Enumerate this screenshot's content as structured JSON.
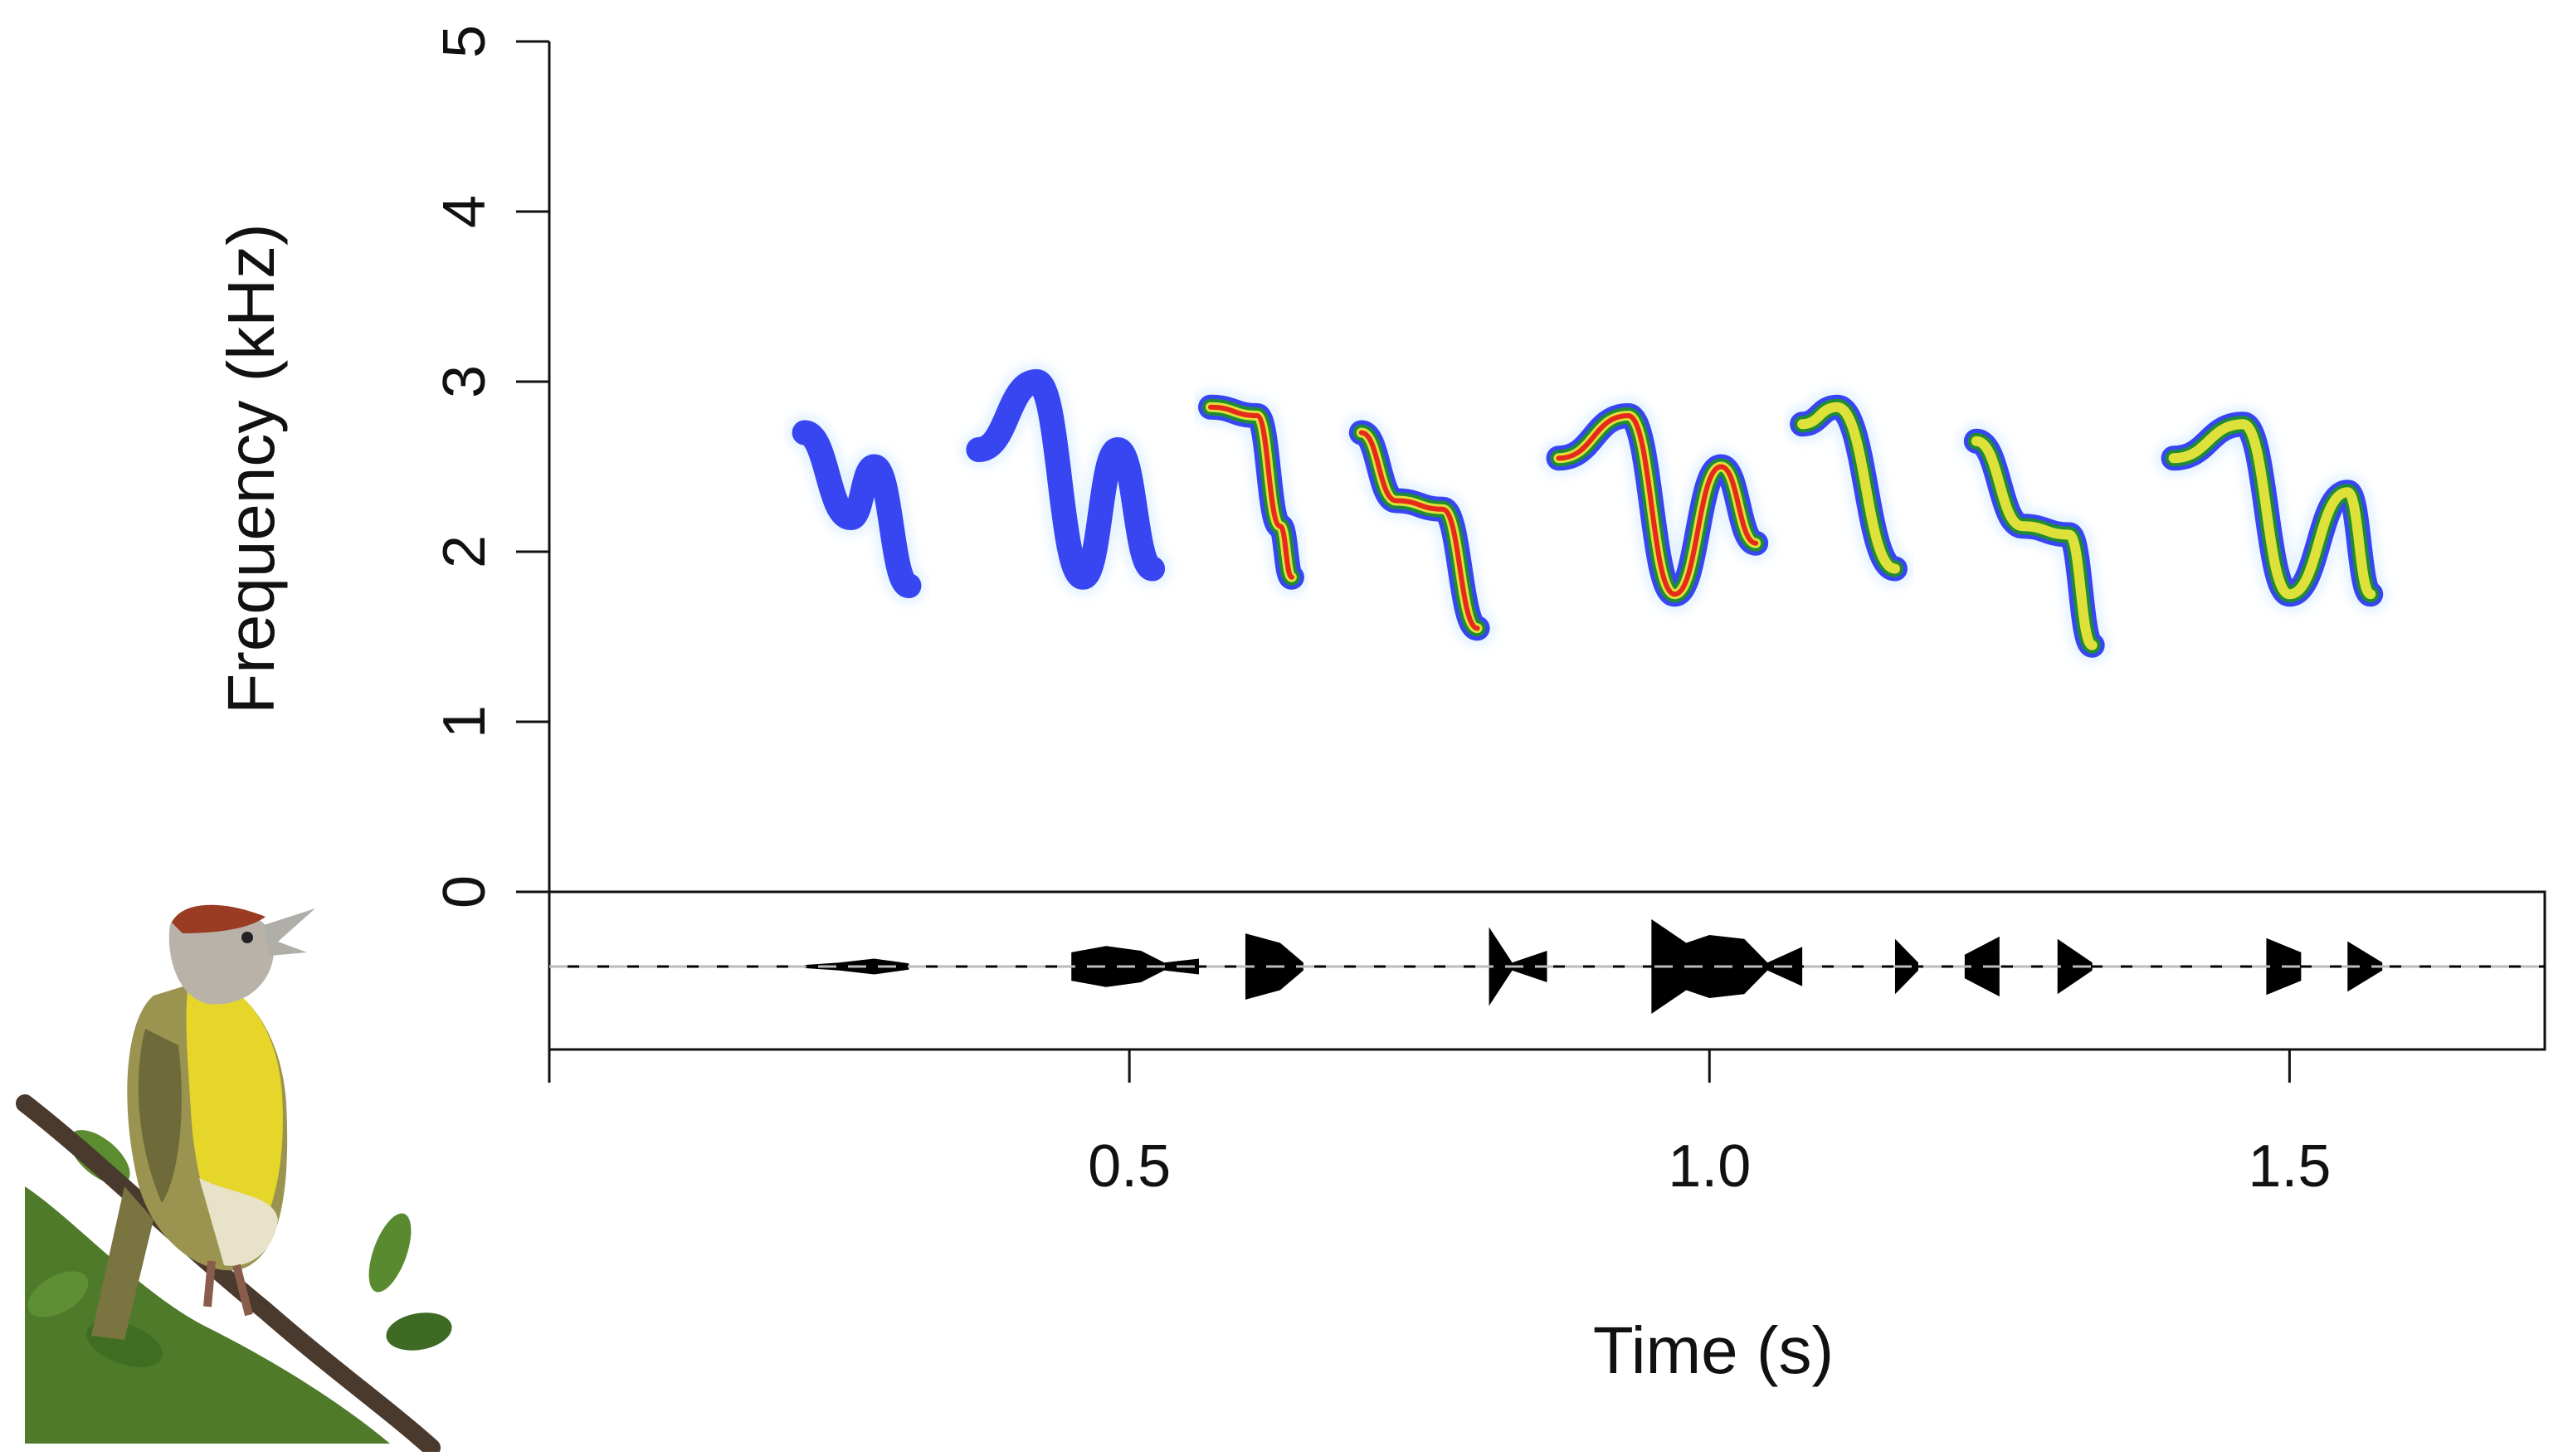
{
  "chart_data": {
    "type": "spectrogram",
    "xlabel": "Time (s)",
    "ylabel": "Frequency (kHz)",
    "xlim": [
      0,
      1.72
    ],
    "ylim": [
      -0.95,
      5
    ],
    "x_ticks": [
      {
        "value": 0.5,
        "label": "0.5"
      },
      {
        "value": 1.0,
        "label": "1.0"
      },
      {
        "value": 1.5,
        "label": "1.5"
      }
    ],
    "y_ticks": [
      {
        "value": 0,
        "label": "0"
      },
      {
        "value": 1,
        "label": "1"
      },
      {
        "value": 2,
        "label": "2"
      },
      {
        "value": 3,
        "label": "3"
      },
      {
        "value": 4,
        "label": "4"
      },
      {
        "value": 5,
        "label": "5"
      }
    ],
    "grid": false,
    "colormap": [
      "#cfe8ff",
      "#2d3cf0",
      "#1f8f2a",
      "#e8e63a",
      "#e8201a"
    ],
    "series": [
      {
        "points": [
          [
            0.22,
            2.7
          ],
          [
            0.26,
            2.2
          ],
          [
            0.28,
            2.5
          ],
          [
            0.31,
            1.8
          ]
        ],
        "level": 1
      },
      {
        "points": [
          [
            0.37,
            2.6
          ],
          [
            0.42,
            3.0
          ],
          [
            0.46,
            1.85
          ],
          [
            0.49,
            2.6
          ],
          [
            0.52,
            1.9
          ]
        ],
        "level": 1
      },
      {
        "points": [
          [
            0.57,
            2.85
          ],
          [
            0.61,
            2.8
          ],
          [
            0.63,
            2.15
          ],
          [
            0.64,
            1.85
          ]
        ],
        "level": 4
      },
      {
        "points": [
          [
            0.7,
            2.7
          ],
          [
            0.73,
            2.3
          ],
          [
            0.77,
            2.25
          ],
          [
            0.8,
            1.55
          ]
        ],
        "level": 4
      },
      {
        "points": [
          [
            0.87,
            2.55
          ],
          [
            0.93,
            2.8
          ],
          [
            0.97,
            1.75
          ],
          [
            1.01,
            2.5
          ],
          [
            1.04,
            2.05
          ]
        ],
        "level": 4
      },
      {
        "points": [
          [
            1.08,
            2.75
          ],
          [
            1.11,
            2.85
          ],
          [
            1.16,
            1.9
          ]
        ],
        "level": 3
      },
      {
        "points": [
          [
            1.23,
            2.65
          ],
          [
            1.27,
            2.15
          ],
          [
            1.31,
            2.1
          ],
          [
            1.33,
            1.45
          ]
        ],
        "level": 3
      },
      {
        "points": [
          [
            1.4,
            2.55
          ],
          [
            1.46,
            2.75
          ],
          [
            1.5,
            1.75
          ],
          [
            1.55,
            2.35
          ],
          [
            1.57,
            1.75
          ]
        ],
        "level": 3
      }
    ],
    "oscillogram": {
      "ylim": [
        -1,
        1
      ],
      "envelope": [
        [
          0.22,
          0.02
        ],
        [
          0.25,
          0.05
        ],
        [
          0.28,
          0.1
        ],
        [
          0.31,
          0.04
        ],
        [
          0.37,
          0.05
        ],
        [
          0.41,
          0.14
        ],
        [
          0.45,
          0.18
        ],
        [
          0.48,
          0.26
        ],
        [
          0.51,
          0.2
        ],
        [
          0.53,
          0.05
        ],
        [
          0.56,
          0.1
        ],
        [
          0.6,
          0.42
        ],
        [
          0.63,
          0.3
        ],
        [
          0.65,
          0.05
        ],
        [
          0.69,
          0.12
        ],
        [
          0.73,
          0.6
        ],
        [
          0.77,
          0.66
        ],
        [
          0.81,
          0.5
        ],
        [
          0.83,
          0.05
        ],
        [
          0.86,
          0.2
        ],
        [
          0.91,
          0.66
        ],
        [
          0.95,
          0.6
        ],
        [
          0.98,
          0.3
        ],
        [
          1.0,
          0.4
        ],
        [
          1.03,
          0.35
        ],
        [
          1.05,
          0.05
        ],
        [
          1.08,
          0.25
        ],
        [
          1.12,
          0.48
        ],
        [
          1.16,
          0.35
        ],
        [
          1.18,
          0.05
        ],
        [
          1.22,
          0.15
        ],
        [
          1.25,
          0.38
        ],
        [
          1.3,
          0.35
        ],
        [
          1.33,
          0.05
        ],
        [
          1.39,
          0.15
        ],
        [
          1.43,
          0.38
        ],
        [
          1.48,
          0.36
        ],
        [
          1.51,
          0.18
        ],
        [
          1.55,
          0.32
        ],
        [
          1.58,
          0.05
        ]
      ]
    }
  }
}
